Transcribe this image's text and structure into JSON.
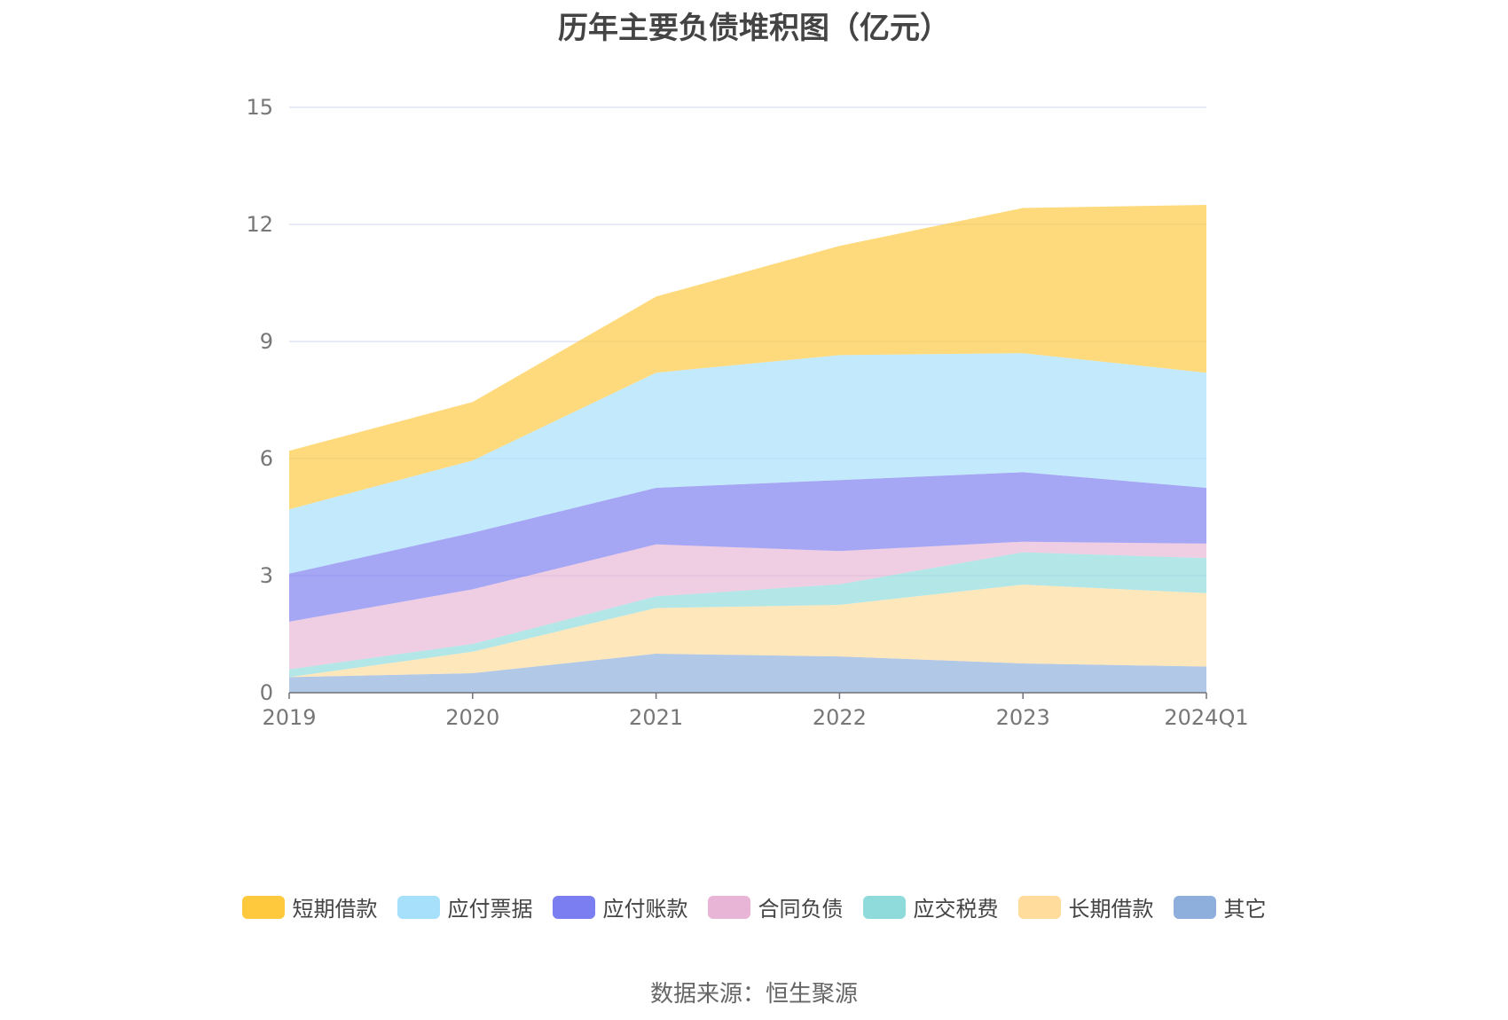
{
  "chart_data": {
    "type": "area",
    "stacked": true,
    "title": "历年主要负债堆积图（亿元）",
    "categories": [
      "2019",
      "2020",
      "2021",
      "2022",
      "2023",
      "2024Q1"
    ],
    "y_ticks": [
      "0",
      "3",
      "6",
      "9",
      "12",
      "15"
    ],
    "ylim": [
      0,
      15
    ],
    "grid": true,
    "legend_position": "bottom",
    "series": [
      {
        "name": "其它",
        "color": "#8eaedc",
        "values": [
          0.4,
          0.5,
          1.0,
          0.93,
          0.75,
          0.67
        ]
      },
      {
        "name": "长期借款",
        "color": "#ffdb9c",
        "values": [
          0.0,
          0.55,
          1.17,
          1.32,
          2.02,
          1.88
        ]
      },
      {
        "name": "应交税费",
        "color": "#8fdbdb",
        "values": [
          0.2,
          0.2,
          0.3,
          0.53,
          0.83,
          0.9
        ]
      },
      {
        "name": "合同负债",
        "color": "#e8b5d6",
        "values": [
          1.22,
          1.4,
          1.33,
          0.85,
          0.27,
          0.37
        ]
      },
      {
        "name": "应付账款",
        "color": "#7b7ef0",
        "values": [
          1.23,
          1.45,
          1.45,
          1.82,
          1.78,
          1.43
        ]
      },
      {
        "name": "应付票据",
        "color": "#a7e0fa",
        "values": [
          1.65,
          1.85,
          2.95,
          3.2,
          3.05,
          2.95
        ]
      },
      {
        "name": "短期借款",
        "color": "#ffc93e",
        "values": [
          1.5,
          1.5,
          1.95,
          2.8,
          3.72,
          4.3
        ]
      }
    ]
  },
  "legend_order": [
    "短期借款",
    "应付票据",
    "应付账款",
    "合同负债",
    "应交税费",
    "长期借款",
    "其它"
  ],
  "source_note": "数据来源：恒生聚源"
}
